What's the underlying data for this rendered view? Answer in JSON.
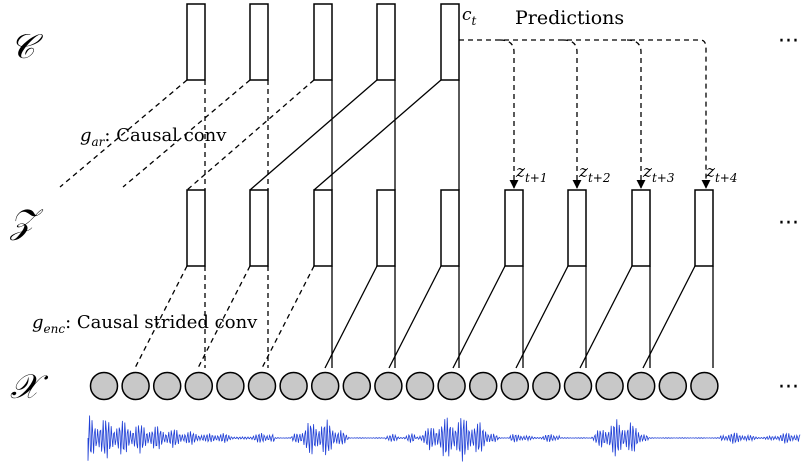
{
  "labels": {
    "row_c": "𝒞",
    "row_z": "𝒵",
    "row_x": "𝒳",
    "ellipsis": "···",
    "context": "c",
    "context_sub": "t",
    "predictions": "Predictions",
    "gar_sym": "g",
    "gar_sub": "ar",
    "gar_text": ": Causal conv",
    "genc_sym": "g",
    "genc_sub": "enc",
    "genc_text": ": Causal strided conv",
    "z_sym": "z",
    "z_subs": [
      "t+1",
      "t+2",
      "t+3",
      "t+4"
    ]
  },
  "colors": {
    "circle_fill": "#c8c8c8",
    "waveform": "#1f3fd6",
    "stroke": "#000000"
  }
}
